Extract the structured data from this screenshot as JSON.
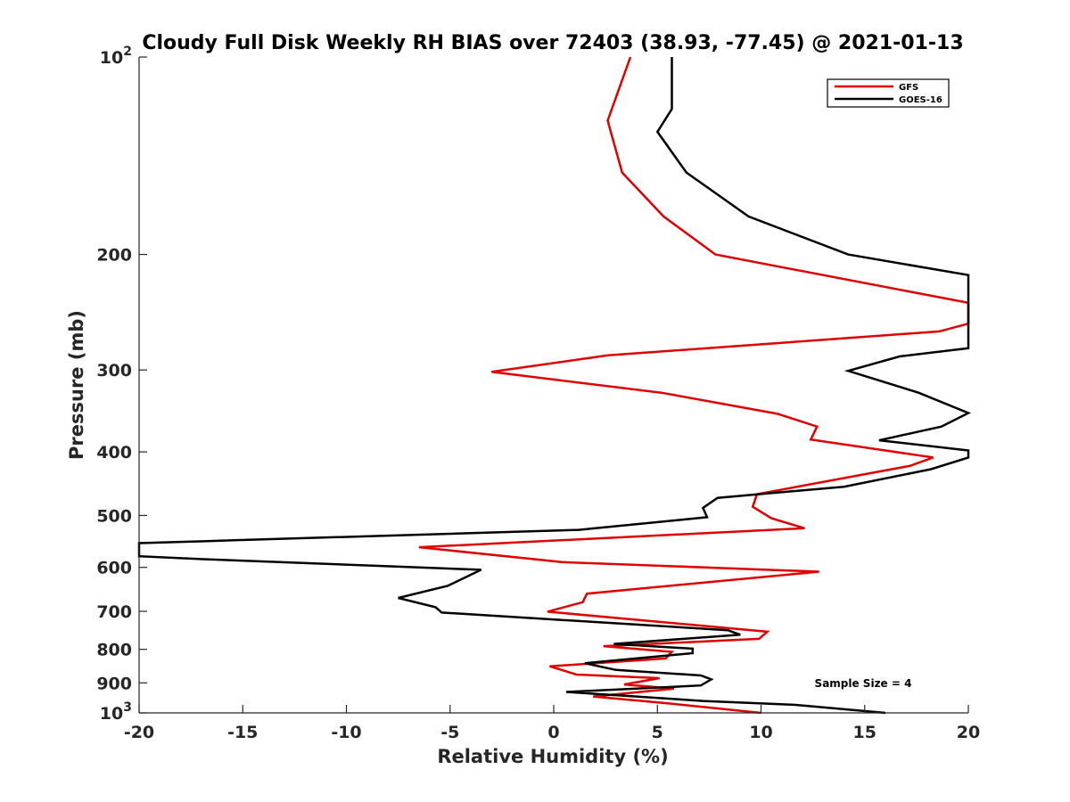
{
  "chart_data": {
    "type": "line",
    "title": "Cloudy Full Disk Weekly RH BIAS over 72403 (38.93, -77.45) @ 2021-01-13",
    "xlabel": "Relative Humidity (%)",
    "ylabel": "Pressure (mb)",
    "xlim": [
      -20,
      20
    ],
    "ylim": [
      100,
      1000
    ],
    "yscale": "log",
    "y_reversed": true,
    "grid": false,
    "legend_position": "top-right",
    "x_ticks": [
      -20,
      -15,
      -10,
      -5,
      0,
      5,
      10,
      15,
      20
    ],
    "x_tick_labels": [
      "-20",
      "-15",
      "-10",
      "-5",
      "0",
      "5",
      "10",
      "15",
      "20"
    ],
    "y_ticks": [
      100,
      200,
      300,
      400,
      500,
      600,
      700,
      800,
      900,
      1000
    ],
    "y_tick_labels": [
      {
        "base": "10",
        "sup": "2"
      },
      {
        "base": "200",
        "sup": ""
      },
      {
        "base": "300",
        "sup": ""
      },
      {
        "base": "400",
        "sup": ""
      },
      {
        "base": "500",
        "sup": ""
      },
      {
        "base": "600",
        "sup": ""
      },
      {
        "base": "700",
        "sup": ""
      },
      {
        "base": "800",
        "sup": ""
      },
      {
        "base": "900",
        "sup": ""
      },
      {
        "base": "10",
        "sup": "3"
      }
    ],
    "annotation": "Sample Size = 4",
    "series": [
      {
        "name": "GFS",
        "color": "#e00000",
        "points": [
          [
            3.7,
            100
          ],
          [
            2.6,
            125
          ],
          [
            3.3,
            150
          ],
          [
            5.3,
            175
          ],
          [
            7.8,
            200
          ],
          [
            20,
            237
          ],
          [
            20,
            255
          ],
          [
            18.6,
            262
          ],
          [
            2.6,
            285
          ],
          [
            -3.0,
            302
          ],
          [
            5.2,
            325
          ],
          [
            10.8,
            350
          ],
          [
            12.7,
            366
          ],
          [
            12.4,
            383
          ],
          [
            18.3,
            408
          ],
          [
            17.2,
            420
          ],
          [
            9.8,
            464
          ],
          [
            9.6,
            485
          ],
          [
            10.5,
            505
          ],
          [
            12.1,
            523
          ],
          [
            -6.5,
            559
          ],
          [
            0.4,
            589
          ],
          [
            12.8,
            609
          ],
          [
            1.6,
            658
          ],
          [
            1.4,
            678
          ],
          [
            -0.3,
            701
          ],
          [
            10.3,
            752
          ],
          [
            9.9,
            771
          ],
          [
            2.4,
            791
          ],
          [
            5.7,
            807
          ],
          [
            5.4,
            826
          ],
          [
            -0.2,
            849
          ],
          [
            1.1,
            874
          ],
          [
            5.1,
            885
          ],
          [
            3.4,
            905
          ],
          [
            5.8,
            918
          ],
          [
            1.9,
            944
          ],
          [
            5.5,
            967
          ],
          [
            10.0,
            1000
          ]
        ]
      },
      {
        "name": "GOES-16",
        "color": "#000000",
        "points": [
          [
            5.7,
            100
          ],
          [
            5.7,
            120
          ],
          [
            5.0,
            130
          ],
          [
            6.4,
            150
          ],
          [
            9.4,
            175
          ],
          [
            14.2,
            200
          ],
          [
            20,
            215
          ],
          [
            20,
            278
          ],
          [
            16.7,
            286
          ],
          [
            14.2,
            301
          ],
          [
            17.6,
            325
          ],
          [
            20,
            349
          ],
          [
            18.7,
            366
          ],
          [
            15.7,
            384
          ],
          [
            20,
            398
          ],
          [
            20,
            408
          ],
          [
            18.2,
            425
          ],
          [
            14.0,
            452
          ],
          [
            7.9,
            470
          ],
          [
            7.2,
            487
          ],
          [
            7.4,
            503
          ],
          [
            1.2,
            526
          ],
          [
            -16.7,
            547
          ],
          [
            -20,
            551
          ],
          [
            -20,
            577
          ],
          [
            -16.9,
            583
          ],
          [
            -3.5,
            605
          ],
          [
            -5.1,
            640
          ],
          [
            -7.5,
            668
          ],
          [
            -5.7,
            690
          ],
          [
            -5.4,
            703
          ],
          [
            8.4,
            748
          ],
          [
            9.0,
            760
          ],
          [
            2.9,
            785
          ],
          [
            6.7,
            798
          ],
          [
            6.7,
            811
          ],
          [
            1.5,
            840
          ],
          [
            3.0,
            860
          ],
          [
            7.1,
            877
          ],
          [
            7.6,
            889
          ],
          [
            7.1,
            908
          ],
          [
            0.6,
            929
          ],
          [
            7.2,
            959
          ],
          [
            11.6,
            972
          ],
          [
            16.0,
            1000
          ]
        ]
      }
    ]
  }
}
